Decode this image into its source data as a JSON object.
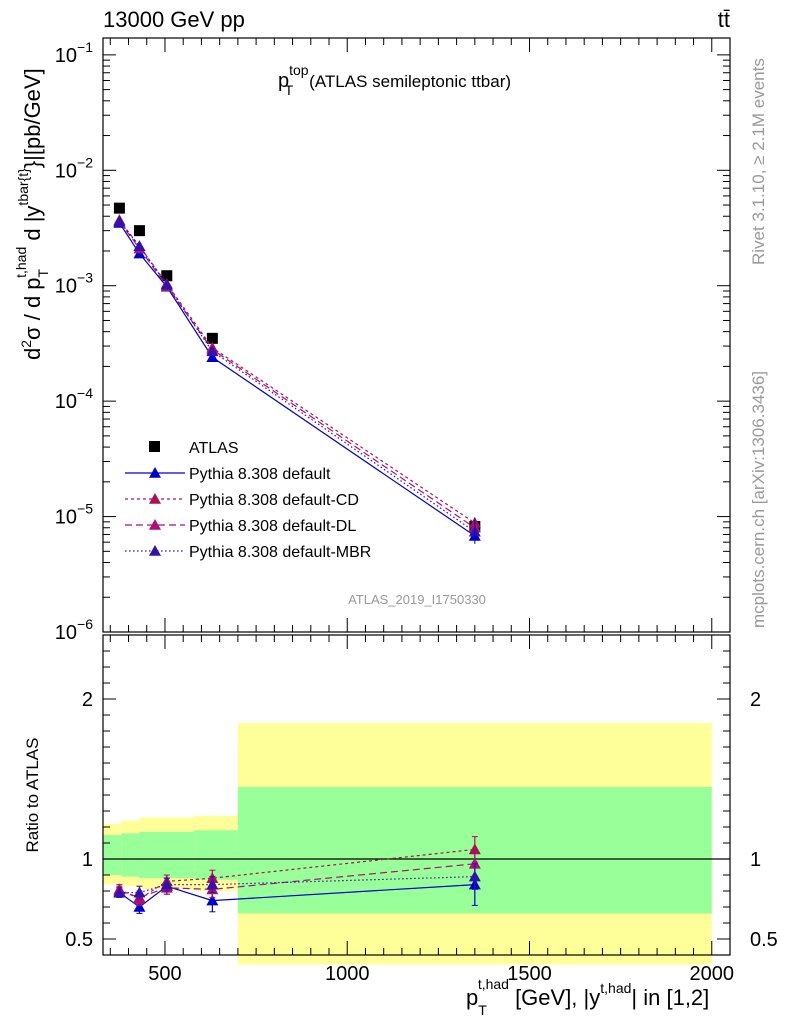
{
  "header": {
    "beam": "13000 GeV pp",
    "process": "tt̄"
  },
  "side_text": {
    "rivet": "Rivet 3.1.10, ≥ 2.1M events",
    "mcplots": "mcplots.cern.ch [arXiv:1306.3436]"
  },
  "chart_data": [
    {
      "type": "line",
      "title_main": "p",
      "title_sup": "top",
      "title_sub": "T",
      "title_rest": "(ATLAS semileptonic ttbar)",
      "ylabel": "d²σ / d p_T^{t,had} d |y^{tbar{t}}|[pb/GeV]",
      "ylabel_parts": {
        "d2": "d",
        "sup2": "2",
        "sigma": "σ / d p",
        "sub_T": "T",
        "sup_thad": "t,had",
        "mid": " d |y",
        "sup_tbar": "tbar{t}",
        "tail": "}|[pb/GeV]"
      },
      "yscale": "log",
      "ylim": [
        1e-06,
        0.14
      ],
      "y_ticks": [
        {
          "value": 0.1,
          "base": "10",
          "exp": "−1"
        },
        {
          "value": 0.01,
          "base": "10",
          "exp": "−2"
        },
        {
          "value": 0.001,
          "base": "10",
          "exp": "−3"
        },
        {
          "value": 0.0001,
          "base": "10",
          "exp": "−4"
        },
        {
          "value": 1e-05,
          "base": "10",
          "exp": "−5"
        },
        {
          "value": 1e-06,
          "base": "10",
          "exp": "−6"
        }
      ],
      "x": [
        375,
        430,
        505,
        630,
        1350
      ],
      "series": [
        {
          "name": "ATLAS",
          "color": "#000000",
          "marker": "square",
          "dash": "none",
          "values": [
            0.0047,
            0.003,
            0.00122,
            0.00035,
            8.2e-06
          ]
        },
        {
          "name": "Pythia 8.308 default",
          "color": "#0000cc",
          "marker": "triangle",
          "dash": "solid",
          "values": [
            0.0035,
            0.0019,
            0.00098,
            0.00024,
            6.8e-06
          ]
        },
        {
          "name": "Pythia 8.308 default-CD",
          "color": "#aa1155",
          "marker": "triangle",
          "dash": "3,3",
          "values": [
            0.0037,
            0.0022,
            0.00104,
            0.00029,
            8.8e-06
          ]
        },
        {
          "name": "Pythia 8.308 default-DL",
          "color": "#aa1177",
          "marker": "triangle",
          "dash": "7,4",
          "values": [
            0.0036,
            0.0021,
            0.00099,
            0.00028,
            8e-06
          ]
        },
        {
          "name": "Pythia 8.308 default-MBR",
          "color": "#3311aa",
          "marker": "triangle",
          "dash": "1.5,2.5",
          "values": [
            0.0036,
            0.0022,
            0.00102,
            0.00027,
            7.4e-06
          ]
        }
      ],
      "watermark": "ATLAS_2019_I1750330",
      "legend_position": "lower-left"
    },
    {
      "type": "line",
      "ylabel": "Ratio to ATLAS",
      "xlabel": "p_T^{t,had} [GeV], |y^{t,had}| in [1,2]",
      "xlabel_parts": {
        "p": "p",
        "sub_T": "T",
        "sup_thad": "t,had",
        "mid": " [GeV], |y",
        "sup_thad2": "t,had",
        "tail": "| in [1,2]"
      },
      "xlim": [
        330,
        2050
      ],
      "ylim": [
        0.4,
        2.4
      ],
      "x_ticks": [
        500,
        1000,
        1500,
        2000
      ],
      "x_tick_labels": [
        "500",
        "1000",
        "1500",
        "2000"
      ],
      "y_ticks": [
        0.5,
        1,
        2
      ],
      "y_tick_labels": [
        "0.5",
        "1",
        "2"
      ],
      "reference_line": 1,
      "bands": {
        "yellow": [
          {
            "x0": 330,
            "x1": 380,
            "lo": 0.84,
            "hi": 1.22
          },
          {
            "x0": 380,
            "x1": 430,
            "lo": 0.83,
            "hi": 1.24
          },
          {
            "x0": 430,
            "x1": 580,
            "lo": 0.81,
            "hi": 1.26
          },
          {
            "x0": 580,
            "x1": 700,
            "lo": 0.8,
            "hi": 1.27
          },
          {
            "x0": 700,
            "x1": 2000,
            "lo": 0.34,
            "hi": 1.85
          }
        ],
        "green": [
          {
            "x0": 330,
            "x1": 380,
            "lo": 0.9,
            "hi": 1.15
          },
          {
            "x0": 380,
            "x1": 430,
            "lo": 0.89,
            "hi": 1.16
          },
          {
            "x0": 430,
            "x1": 580,
            "lo": 0.88,
            "hi": 1.17
          },
          {
            "x0": 580,
            "x1": 700,
            "lo": 0.87,
            "hi": 1.18
          },
          {
            "x0": 700,
            "x1": 2000,
            "lo": 0.66,
            "hi": 1.45
          }
        ]
      },
      "x": [
        375,
        430,
        505,
        630,
        1350
      ],
      "series": [
        {
          "name": "Pythia 8.308 default",
          "color": "#0000cc",
          "dash": "solid",
          "values": [
            0.79,
            0.7,
            0.83,
            0.74,
            0.84
          ],
          "err": [
            0.03,
            0.04,
            0.05,
            0.07,
            0.13
          ]
        },
        {
          "name": "Pythia 8.308 default-CD",
          "color": "#aa1155",
          "dash": "3,3",
          "values": [
            0.81,
            0.75,
            0.86,
            0.88,
            1.06
          ],
          "err": [
            0.03,
            0.04,
            0.04,
            0.05,
            0.08
          ]
        },
        {
          "name": "Pythia 8.308 default-DL",
          "color": "#aa1177",
          "dash": "7,4",
          "values": [
            0.8,
            0.76,
            0.82,
            0.81,
            0.97
          ],
          "err": [
            0.03,
            0.04,
            0.04,
            0.05,
            0.08
          ]
        },
        {
          "name": "Pythia 8.308 default-MBR",
          "color": "#3311aa",
          "dash": "1.5,2.5",
          "values": [
            0.79,
            0.79,
            0.84,
            0.84,
            0.89
          ],
          "err": [
            0.03,
            0.04,
            0.04,
            0.05,
            0.08
          ]
        }
      ]
    }
  ]
}
